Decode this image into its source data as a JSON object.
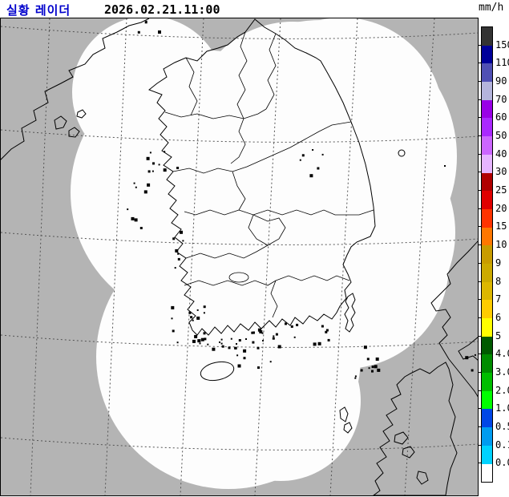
{
  "header": {
    "title": "실황 레이더",
    "timestamp": "2026.02.21.11:00"
  },
  "legend": {
    "unit": "mm/h",
    "labels": [
      "150",
      "110",
      "90",
      "70",
      "60",
      "50",
      "40",
      "30",
      "25",
      "20",
      "15",
      "10",
      "9",
      "8",
      "7",
      "6",
      "5",
      "4.0",
      "3.0",
      "2.0",
      "1.0",
      "0.5",
      "0.1",
      "0.0"
    ],
    "colors": [
      "#333333",
      "#000099",
      "#5050b4",
      "#b4b4dc",
      "#9900e6",
      "#aa28ff",
      "#cc66ff",
      "#e6b4ff",
      "#b00000",
      "#e00000",
      "#ff3300",
      "#ff7700",
      "#c89c00",
      "#ccaa00",
      "#ddb700",
      "#ffcc00",
      "#ffff00",
      "#005a00",
      "#008c00",
      "#00be00",
      "#00ff00",
      "#0046e6",
      "#009cf0",
      "#00d2ff",
      "#ffffff"
    ]
  },
  "map": {
    "out_of_range_color": "#b4b4b4",
    "radar_coverage_color": "#fdfdfd",
    "coastline_color": "#000000",
    "graticule_color": "#555555"
  }
}
